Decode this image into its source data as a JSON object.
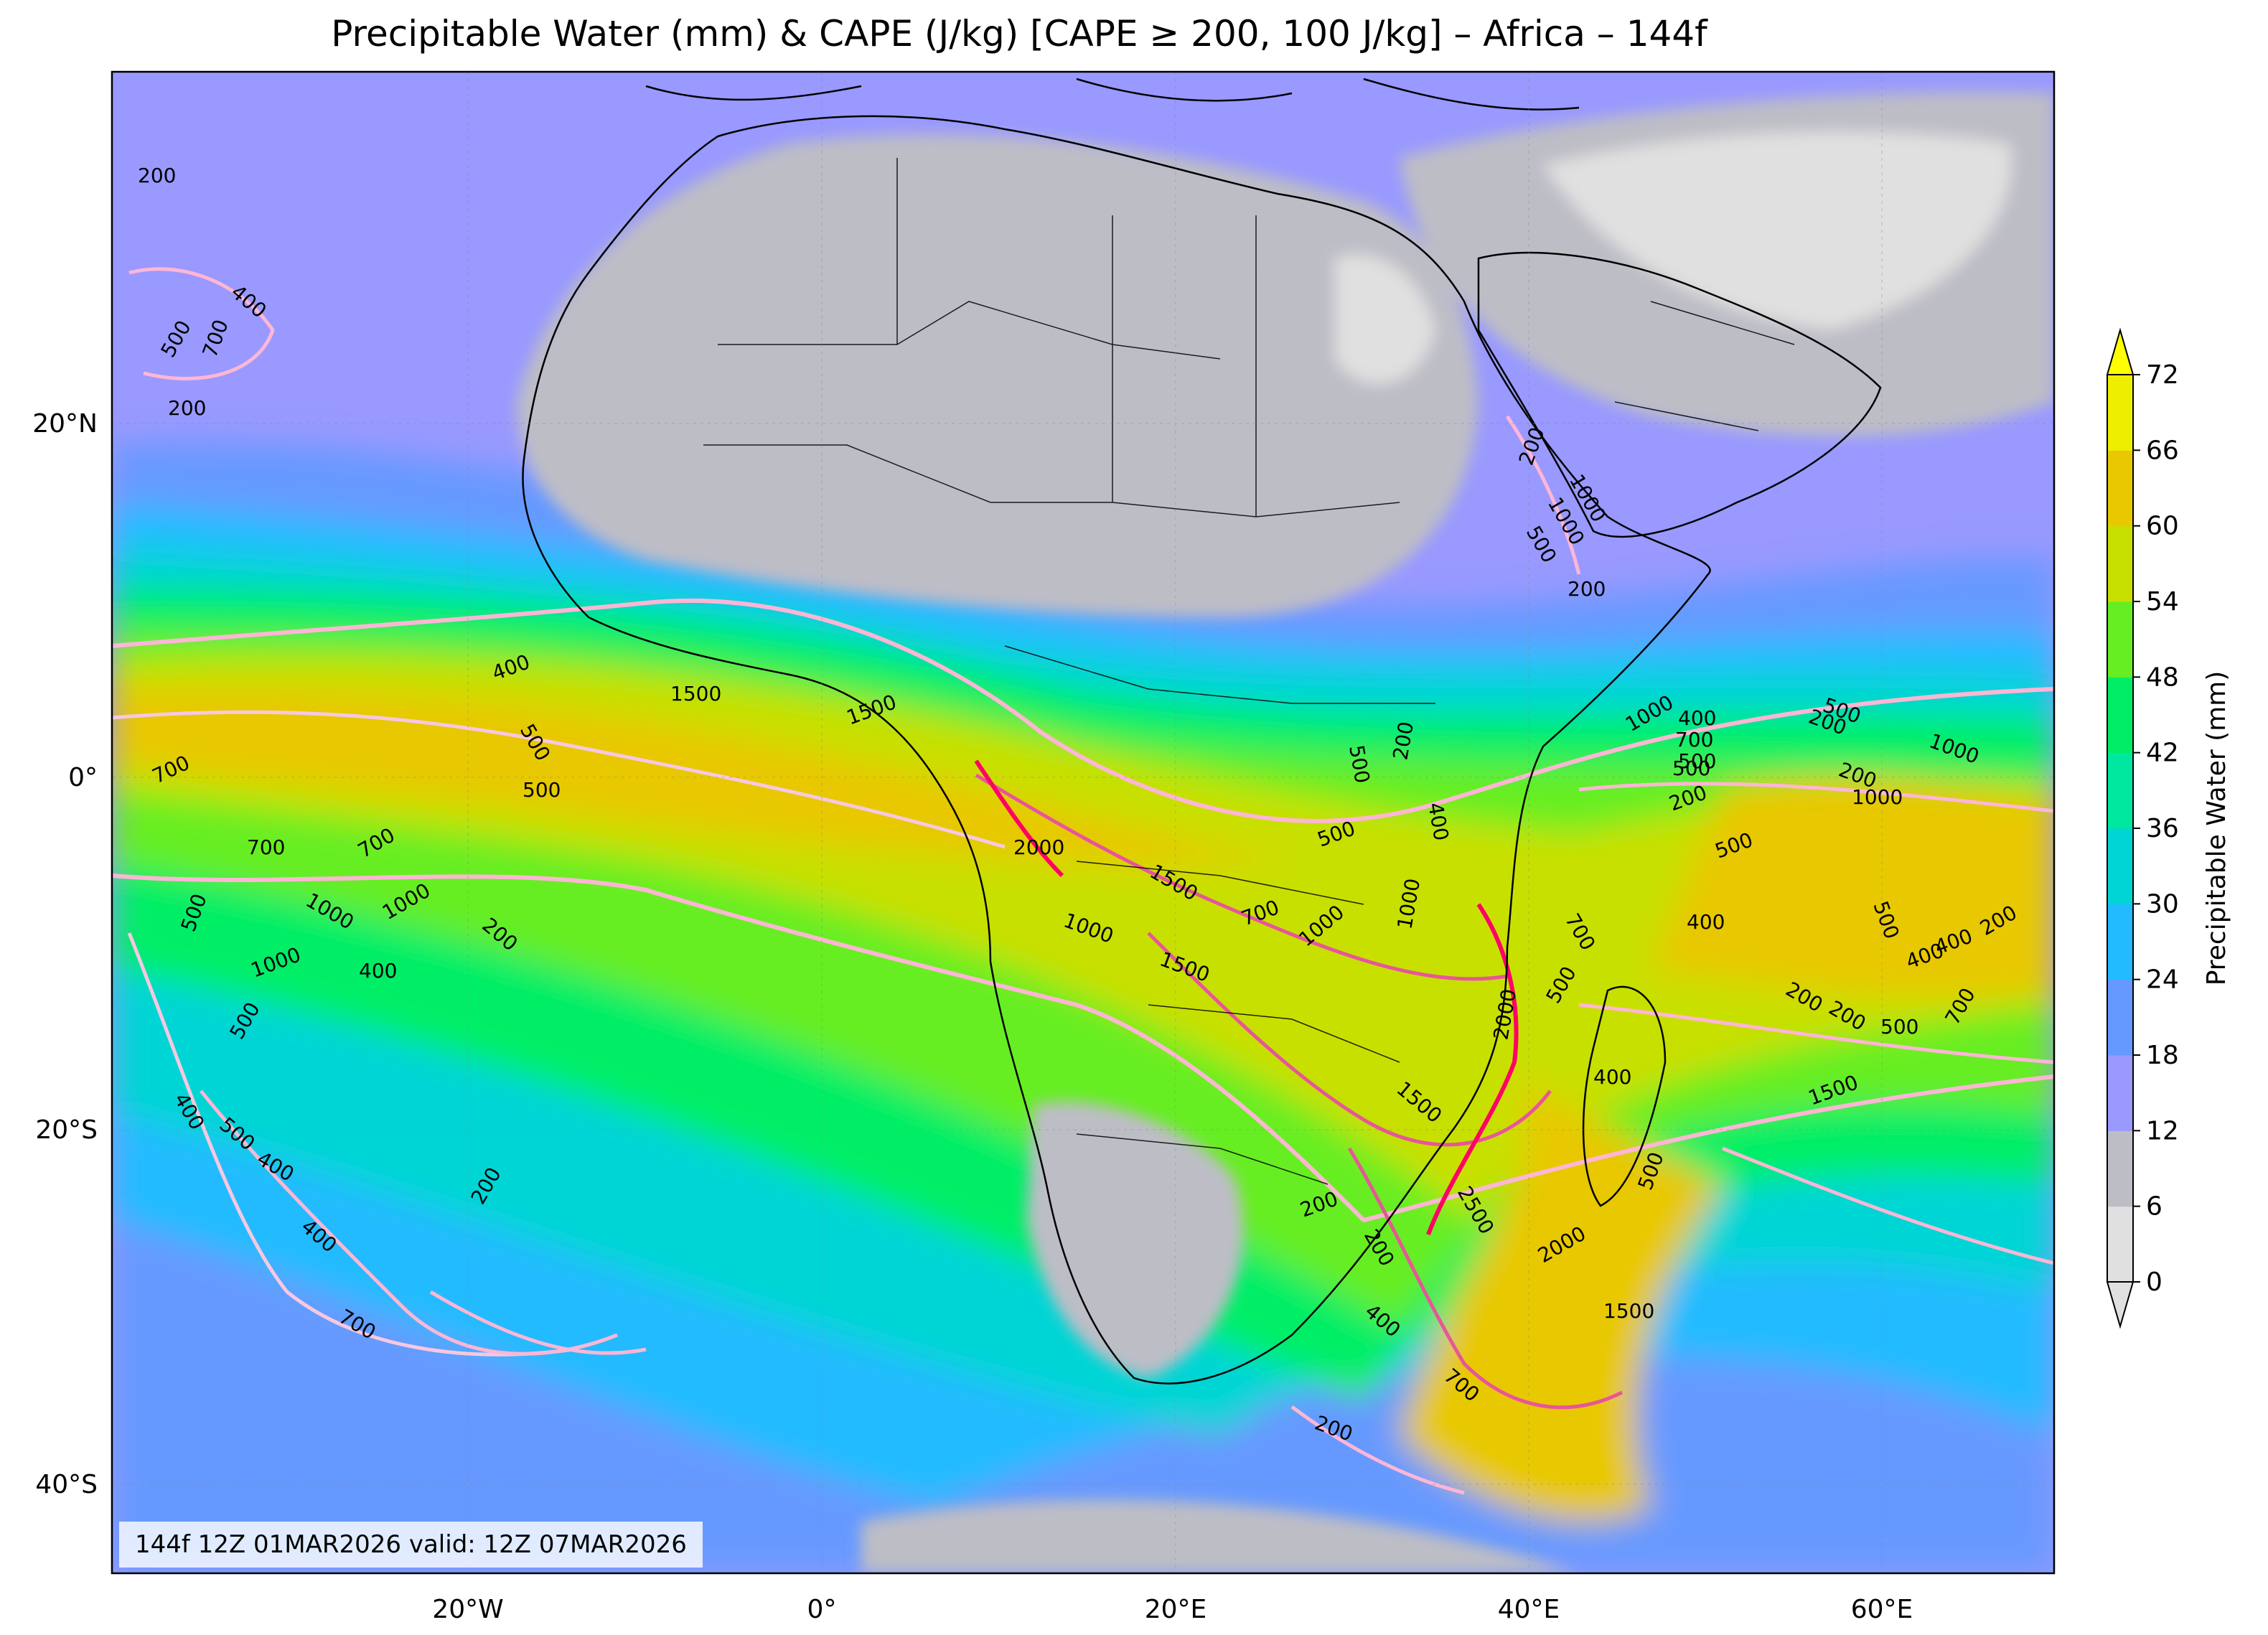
{
  "title": "Precipitable Water (mm) & CAPE (J/kg) [CAPE ≥ 200, 100 J/kg] – Africa – 144f",
  "valid_text": "144f 12Z 01MAR2026 valid: 12Z 07MAR2026",
  "axes": {
    "lon_ticks": [
      "20°W",
      "0°",
      "20°E",
      "40°E",
      "60°E"
    ],
    "lat_ticks": [
      "20°N",
      "0°",
      "20°S",
      "40°S"
    ]
  },
  "colorbar": {
    "label": "Precipitable Water (mm)",
    "ticks": [
      "0",
      "6",
      "12",
      "18",
      "24",
      "30",
      "36",
      "42",
      "48",
      "54",
      "60",
      "66",
      "72"
    ],
    "colors": [
      "#e0e0e0",
      "#bdbdc6",
      "#9999ff",
      "#6699ff",
      "#22bbff",
      "#00d5d5",
      "#00e8a0",
      "#00ee66",
      "#66ee22",
      "#c8e000",
      "#e8c800",
      "#eeee00"
    ],
    "over_color": "#ffff00",
    "under_color": "#e0e0e0"
  },
  "cape_labels": [
    "200",
    "400",
    "500",
    "700",
    "200",
    "1500",
    "1500",
    "400",
    "500",
    "500",
    "700",
    "700",
    "700",
    "1000",
    "1000",
    "200",
    "1000",
    "400",
    "500",
    "500",
    "400",
    "500",
    "400",
    "400",
    "200",
    "700",
    "2000",
    "1000",
    "1500",
    "1500",
    "700",
    "500",
    "500",
    "200",
    "400",
    "1000",
    "1000",
    "2000",
    "1500",
    "2500",
    "2000",
    "1500",
    "200",
    "200",
    "400",
    "700",
    "200",
    "700",
    "500",
    "500",
    "400",
    "500",
    "200",
    "1000",
    "1000",
    "200",
    "1000",
    "500",
    "700",
    "500",
    "400",
    "1500",
    "200",
    "500",
    "400",
    "500",
    "200",
    "200",
    "500",
    "200",
    "1000",
    "200",
    "500",
    "400",
    "1000",
    "700",
    "400",
    "200"
  ],
  "colors": {
    "cape_light": "#ffb6d5",
    "cape_mid": "#e8559a",
    "cape_strong": "#ff0066",
    "land_dry": "#bdbdc6"
  }
}
